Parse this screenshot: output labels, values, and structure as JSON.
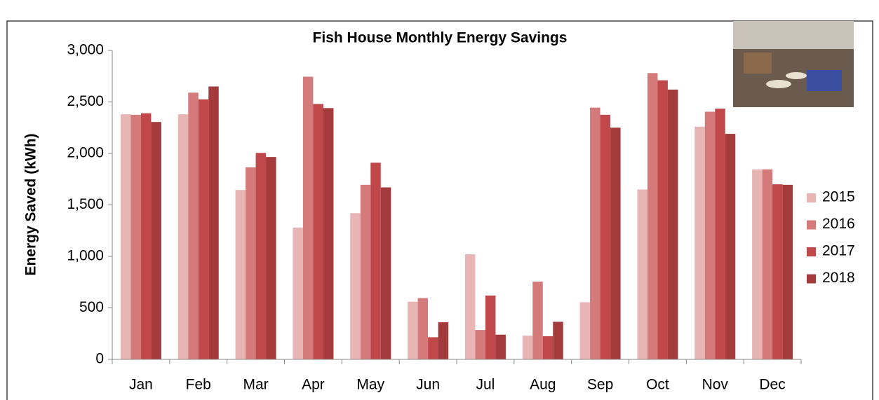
{
  "chart_data": {
    "type": "bar",
    "title": "Fish House Monthly Energy Savings",
    "y_label": "Energy Saved (kWh)",
    "categories": [
      "Jan",
      "Feb",
      "Mar",
      "Apr",
      "May",
      "Jun",
      "Jul",
      "Aug",
      "Sep",
      "Oct",
      "Nov",
      "Dec"
    ],
    "series": [
      {
        "name": "2015",
        "color": "#e8b5b5",
        "values": [
          2380,
          2380,
          1645,
          1280,
          1420,
          560,
          1020,
          230,
          555,
          1650,
          2260,
          1845
        ]
      },
      {
        "name": "2016",
        "color": "#d47a7a",
        "values": [
          2375,
          2590,
          1865,
          2745,
          1695,
          595,
          285,
          755,
          2445,
          2780,
          2405,
          1845
        ]
      },
      {
        "name": "2017",
        "color": "#c0474a",
        "values": [
          2390,
          2525,
          2005,
          2480,
          1910,
          215,
          620,
          225,
          2375,
          2710,
          2435,
          1700
        ]
      },
      {
        "name": "2018",
        "color": "#a33a3c",
        "values": [
          2305,
          2650,
          1965,
          2440,
          1670,
          360,
          240,
          365,
          2250,
          2620,
          2190,
          1695
        ]
      }
    ],
    "ylim": [
      0,
      3000
    ],
    "yticks": [
      0,
      500,
      {
        "value": 1000,
        "label": "1,000"
      },
      {
        "value": 1500,
        "label": "1,500"
      },
      {
        "value": 2000,
        "label": "2,000"
      },
      {
        "value": 2500,
        "label": "2,500"
      },
      {
        "value": 3000,
        "label": "3,000"
      }
    ],
    "legend": "right"
  }
}
